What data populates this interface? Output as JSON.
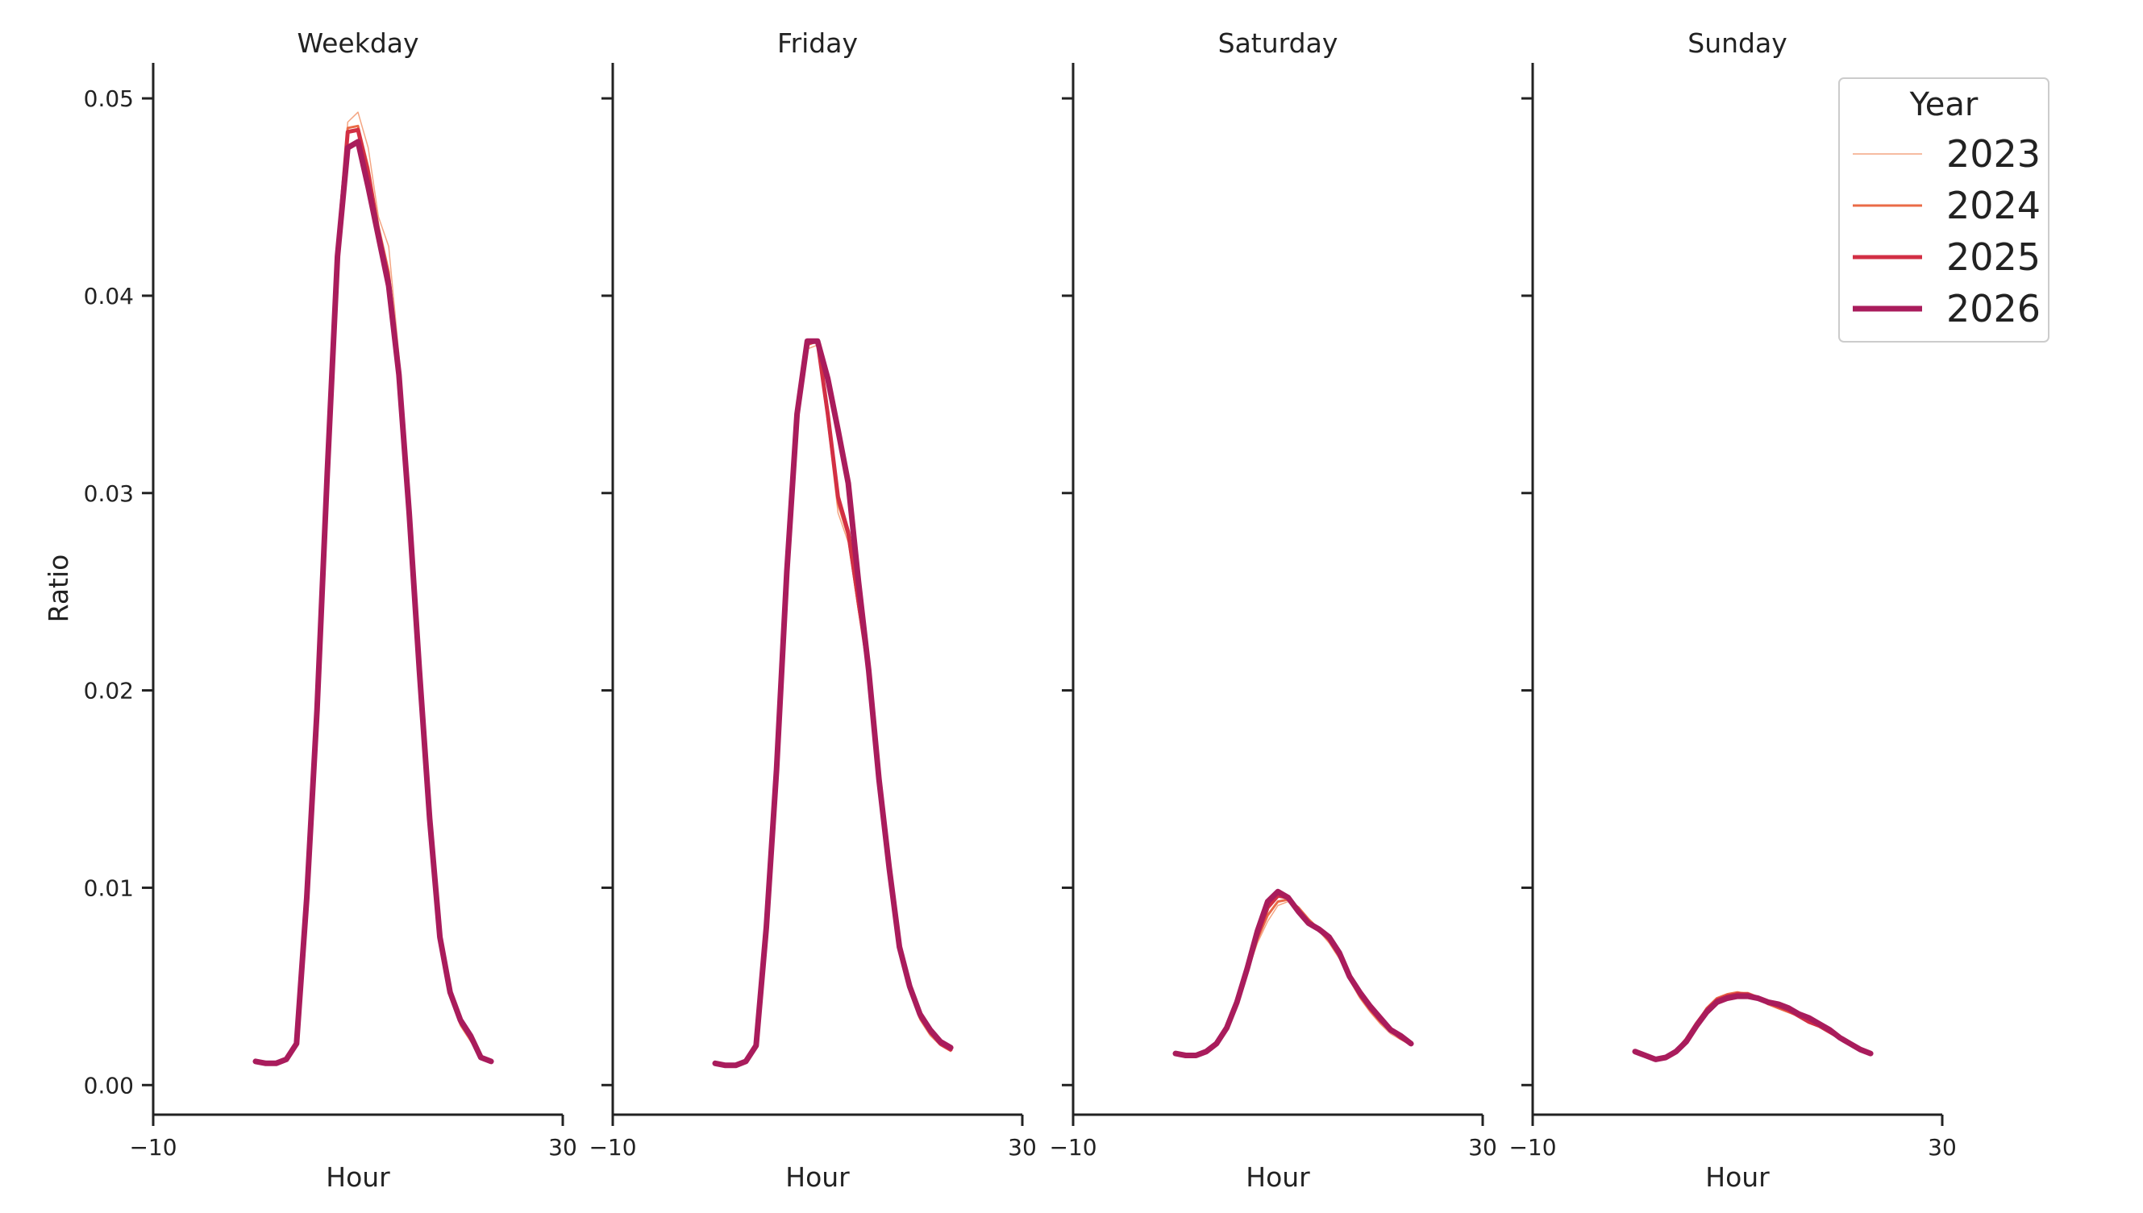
{
  "chart_data": {
    "type": "line",
    "ylabel": "Ratio",
    "xlabel": "Hour",
    "xlim": [
      -10,
      30
    ],
    "ylim": [
      -0.0015,
      0.0518
    ],
    "x_ticks": [
      -10,
      30
    ],
    "x_tick_labels": [
      "−10",
      "30"
    ],
    "y_ticks": [
      0.0,
      0.01,
      0.02,
      0.03,
      0.04,
      0.05
    ],
    "y_tick_labels": [
      "0.00",
      "0.01",
      "0.02",
      "0.03",
      "0.04",
      "0.05"
    ],
    "grid": false,
    "legend": {
      "title": "Year",
      "placement": "top-right",
      "entries": [
        "2023",
        "2024",
        "2025",
        "2026"
      ]
    },
    "series_styles": [
      {
        "name": "2023",
        "color": "#f4a582",
        "width": 1.5
      },
      {
        "name": "2024",
        "color": "#ea6b47",
        "width": 3
      },
      {
        "name": "2025",
        "color": "#d22f44",
        "width": 5
      },
      {
        "name": "2026",
        "color": "#a91c5c",
        "width": 7
      }
    ],
    "x": [
      0,
      1,
      2,
      3,
      4,
      5,
      6,
      7,
      8,
      9,
      10,
      11,
      12,
      13,
      14,
      15,
      16,
      17,
      18,
      19,
      20,
      21,
      22,
      23
    ],
    "panels": [
      {
        "title": "Weekday",
        "series": [
          {
            "name": "2023",
            "values": [
              0.0012,
              0.0011,
              0.0011,
              0.0013,
              0.0021,
              0.0095,
              0.019,
              0.031,
              0.042,
              0.0488,
              0.0493,
              0.0475,
              0.044,
              0.0425,
              0.037,
              0.0295,
              0.021,
              0.0135,
              0.0075,
              0.0046,
              0.003,
              0.0022,
              0.0014,
              0.0012
            ]
          },
          {
            "name": "2024",
            "values": [
              0.0012,
              0.0011,
              0.0011,
              0.0013,
              0.0021,
              0.0095,
              0.019,
              0.031,
              0.042,
              0.0485,
              0.0486,
              0.0465,
              0.0435,
              0.0412,
              0.0365,
              0.0292,
              0.021,
              0.0135,
              0.0075,
              0.0046,
              0.0031,
              0.0023,
              0.0014,
              0.0012
            ]
          },
          {
            "name": "2025",
            "values": [
              0.0012,
              0.0011,
              0.0011,
              0.0013,
              0.0021,
              0.0095,
              0.019,
              0.031,
              0.042,
              0.0483,
              0.0484,
              0.0462,
              0.0432,
              0.0408,
              0.0362,
              0.029,
              0.021,
              0.0135,
              0.0075,
              0.0047,
              0.0032,
              0.0024,
              0.0014,
              0.0012
            ]
          },
          {
            "name": "2026",
            "values": [
              0.0012,
              0.0011,
              0.0011,
              0.0013,
              0.0021,
              0.0095,
              0.019,
              0.031,
              0.042,
              0.0475,
              0.0478,
              0.0455,
              0.043,
              0.0405,
              0.036,
              0.029,
              0.021,
              0.0135,
              0.0075,
              0.0047,
              0.0033,
              0.0025,
              0.0014,
              0.0012
            ]
          }
        ]
      },
      {
        "title": "Friday",
        "series": [
          {
            "name": "2023",
            "values": [
              0.0011,
              0.001,
              0.001,
              0.0012,
              0.002,
              0.008,
              0.016,
              0.026,
              0.034,
              0.0373,
              0.0375,
              0.0335,
              0.029,
              0.0275,
              0.024,
              0.021,
              0.0155,
              0.011,
              0.007,
              0.0048,
              0.0033,
              0.0025,
              0.002,
              0.0017
            ]
          },
          {
            "name": "2024",
            "values": [
              0.0011,
              0.001,
              0.001,
              0.0012,
              0.002,
              0.008,
              0.016,
              0.026,
              0.034,
              0.0375,
              0.0377,
              0.0338,
              0.0295,
              0.0278,
              0.0242,
              0.021,
              0.0155,
              0.011,
              0.007,
              0.0049,
              0.0034,
              0.0026,
              0.0021,
              0.0018
            ]
          },
          {
            "name": "2025",
            "values": [
              0.0011,
              0.001,
              0.001,
              0.0012,
              0.002,
              0.008,
              0.016,
              0.026,
              0.034,
              0.0376,
              0.0377,
              0.034,
              0.0298,
              0.028,
              0.0245,
              0.021,
              0.0155,
              0.011,
              0.007,
              0.005,
              0.0035,
              0.0027,
              0.0021,
              0.0018
            ]
          },
          {
            "name": "2026",
            "values": [
              0.0011,
              0.001,
              0.001,
              0.0012,
              0.002,
              0.008,
              0.016,
              0.026,
              0.034,
              0.0377,
              0.0377,
              0.0358,
              0.0332,
              0.0305,
              0.0255,
              0.021,
              0.0155,
              0.011,
              0.007,
              0.005,
              0.0036,
              0.0028,
              0.0022,
              0.0019
            ]
          }
        ]
      },
      {
        "title": "Saturday",
        "series": [
          {
            "name": "2023",
            "values": [
              0.0016,
              0.0015,
              0.0015,
              0.0017,
              0.0021,
              0.0029,
              0.0042,
              0.0057,
              0.0072,
              0.0083,
              0.0091,
              0.0093,
              0.0089,
              0.0083,
              0.0078,
              0.0072,
              0.0064,
              0.0053,
              0.0044,
              0.0037,
              0.0031,
              0.0026,
              0.0023,
              0.002
            ]
          },
          {
            "name": "2024",
            "values": [
              0.0016,
              0.0015,
              0.0015,
              0.0017,
              0.0021,
              0.0029,
              0.0042,
              0.0057,
              0.0074,
              0.0086,
              0.0093,
              0.0094,
              0.009,
              0.0084,
              0.0079,
              0.0073,
              0.0065,
              0.0054,
              0.0045,
              0.0038,
              0.0032,
              0.0027,
              0.0024,
              0.0021
            ]
          },
          {
            "name": "2025",
            "values": [
              0.0016,
              0.0015,
              0.0015,
              0.0017,
              0.0021,
              0.0029,
              0.0042,
              0.0058,
              0.0076,
              0.009,
              0.0096,
              0.0095,
              0.0088,
              0.0082,
              0.0079,
              0.0074,
              0.0066,
              0.0055,
              0.0046,
              0.0039,
              0.0033,
              0.0028,
              0.0024,
              0.0021
            ]
          },
          {
            "name": "2026",
            "values": [
              0.0016,
              0.0015,
              0.0015,
              0.0017,
              0.0021,
              0.0029,
              0.0042,
              0.0059,
              0.0078,
              0.0093,
              0.0098,
              0.0095,
              0.0088,
              0.0082,
              0.0079,
              0.0075,
              0.0067,
              0.0055,
              0.0047,
              0.004,
              0.0034,
              0.0028,
              0.0025,
              0.0021
            ]
          }
        ]
      },
      {
        "title": "Sunday",
        "series": [
          {
            "name": "2023",
            "values": [
              0.0017,
              0.0015,
              0.0013,
              0.0014,
              0.0017,
              0.0022,
              0.0031,
              0.0039,
              0.0044,
              0.0046,
              0.0047,
              0.0047,
              0.0045,
              0.0042,
              0.004,
              0.0037,
              0.0035,
              0.0032,
              0.003,
              0.0027,
              0.0024,
              0.0021,
              0.0018,
              0.0016
            ]
          },
          {
            "name": "2024",
            "values": [
              0.0017,
              0.0015,
              0.0013,
              0.0014,
              0.0017,
              0.0023,
              0.0031,
              0.0039,
              0.0044,
              0.0046,
              0.0047,
              0.0046,
              0.0044,
              0.0041,
              0.0039,
              0.0037,
              0.0035,
              0.0032,
              0.003,
              0.0027,
              0.0024,
              0.0021,
              0.0018,
              0.0016
            ]
          },
          {
            "name": "2025",
            "values": [
              0.0017,
              0.0015,
              0.0013,
              0.0014,
              0.0017,
              0.0023,
              0.0031,
              0.0038,
              0.0043,
              0.0045,
              0.0046,
              0.0046,
              0.0044,
              0.0042,
              0.004,
              0.0038,
              0.0035,
              0.0032,
              0.003,
              0.0027,
              0.0024,
              0.0021,
              0.0018,
              0.0016
            ]
          },
          {
            "name": "2026",
            "values": [
              0.0017,
              0.0015,
              0.0013,
              0.0014,
              0.0017,
              0.0022,
              0.003,
              0.0037,
              0.0042,
              0.0044,
              0.0045,
              0.0045,
              0.0044,
              0.0042,
              0.0041,
              0.0039,
              0.0036,
              0.0034,
              0.0031,
              0.0028,
              0.0024,
              0.0021,
              0.0018,
              0.0016
            ]
          }
        ]
      }
    ]
  }
}
